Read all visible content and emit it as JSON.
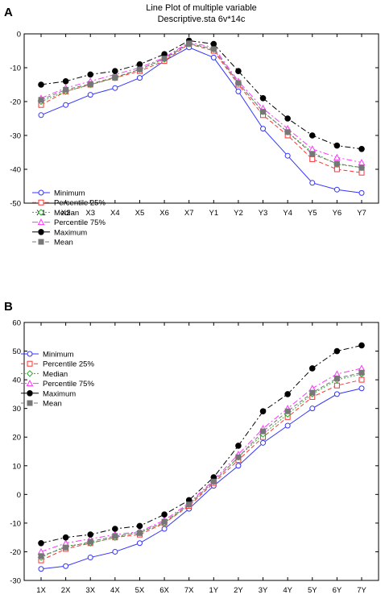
{
  "chart_data": [
    {
      "panel": "A",
      "type": "line",
      "title": "Line Plot of multiple variable",
      "subtitle": "Descriptive.sta 6v*14c",
      "xlabel": "",
      "ylabel": "",
      "categories": [
        "X1",
        "X2",
        "X3",
        "X4",
        "X5",
        "X6",
        "X7",
        "Y1",
        "Y2",
        "Y3",
        "Y4",
        "Y5",
        "Y6",
        "Y7"
      ],
      "ylim": [
        -50,
        0
      ],
      "yticks": [
        0,
        -10,
        -20,
        -30,
        -40,
        -50
      ],
      "legend_position": "lower-left",
      "series": [
        {
          "name": "Minimum",
          "color": "#3333ff",
          "dash": "solid",
          "marker": "circle-open",
          "values": [
            -24,
            -21,
            -18,
            -16,
            -13,
            -8,
            -4,
            -7,
            -17,
            -28,
            -36,
            -44,
            -46,
            -47
          ]
        },
        {
          "name": "Percentile 25%",
          "color": "#ff3333",
          "dash": "dashed",
          "marker": "square-open",
          "values": [
            -21,
            -17,
            -15,
            -13,
            -11,
            -8,
            -3,
            -5,
            -15,
            -24,
            -30,
            -37,
            -40,
            -41
          ]
        },
        {
          "name": "Median",
          "color": "#33aa33",
          "dash": "dotted",
          "marker": "diamond-open",
          "values": [
            -20,
            -17,
            -15,
            -13,
            -10.5,
            -7.5,
            -3,
            -4.5,
            -14.5,
            -23,
            -29,
            -35,
            -38.5,
            -39.5
          ]
        },
        {
          "name": "Percentile 75%",
          "color": "#ff33ff",
          "dash": "dashdot",
          "marker": "triangle-open",
          "values": [
            -19,
            -16,
            -14,
            -12,
            -10,
            -7,
            -2.5,
            -4,
            -14,
            -22,
            -28,
            -34,
            -36.5,
            -38
          ]
        },
        {
          "name": "Maximum",
          "color": "#000000",
          "dash": "dashdot",
          "marker": "circle-filled",
          "values": [
            -15,
            -14,
            -12,
            -11,
            -9,
            -6,
            -2,
            -3,
            -11,
            -19,
            -25,
            -30,
            -33,
            -34
          ]
        },
        {
          "name": "Mean",
          "color": "#777777",
          "dash": "dashed",
          "marker": "square-filled",
          "values": [
            -19.5,
            -16.5,
            -14.8,
            -12.8,
            -10.5,
            -7.3,
            -2.8,
            -4.5,
            -14.5,
            -23,
            -29,
            -35.5,
            -38.3,
            -39.5
          ]
        }
      ]
    },
    {
      "panel": "B",
      "type": "line",
      "title": "",
      "xlabel": "",
      "ylabel": "",
      "categories": [
        "1X",
        "2X",
        "3X",
        "4X",
        "5X",
        "6X",
        "7X",
        "1Y",
        "2Y",
        "3Y",
        "4Y",
        "5Y",
        "6Y",
        "7Y"
      ],
      "ylim": [
        -30,
        60
      ],
      "yticks": [
        60,
        50,
        40,
        30,
        20,
        10,
        0,
        -10,
        -20,
        -30
      ],
      "legend_position": "upper-left",
      "series": [
        {
          "name": "Minimum",
          "color": "#3333ff",
          "dash": "solid",
          "marker": "circle-open",
          "values": [
            -26,
            -25,
            -22,
            -20,
            -17,
            -12,
            -5,
            3,
            10,
            18,
            24,
            30,
            35,
            37
          ]
        },
        {
          "name": "Percentile 25%",
          "color": "#ff3333",
          "dash": "dashed",
          "marker": "square-open",
          "values": [
            -23,
            -19,
            -17,
            -15,
            -14,
            -10,
            -4,
            4,
            12,
            20,
            27,
            34,
            38,
            40
          ]
        },
        {
          "name": "Median",
          "color": "#33aa33",
          "dash": "dotted",
          "marker": "diamond-open",
          "values": [
            -22,
            -18,
            -17,
            -15,
            -13,
            -10,
            -3.5,
            4.5,
            13,
            21,
            28,
            35,
            40,
            42
          ]
        },
        {
          "name": "Percentile 75%",
          "color": "#ff33ff",
          "dash": "dashdot",
          "marker": "triangle-open",
          "values": [
            -20,
            -17,
            -15.5,
            -14,
            -13,
            -9,
            -3,
            5,
            14,
            23,
            30,
            37,
            42,
            44
          ]
        },
        {
          "name": "Maximum",
          "color": "#000000",
          "dash": "dashdot",
          "marker": "circle-filled",
          "values": [
            -17,
            -15,
            -14,
            -12,
            -11,
            -7,
            -2,
            6,
            17,
            29,
            35,
            44,
            50,
            52
          ]
        },
        {
          "name": "Mean",
          "color": "#777777",
          "dash": "dashed",
          "marker": "square-filled",
          "values": [
            -21.5,
            -18.5,
            -16.5,
            -14.5,
            -13.5,
            -9.5,
            -3.5,
            4.5,
            13,
            22,
            29,
            35.5,
            40.5,
            42.5
          ]
        }
      ]
    }
  ]
}
